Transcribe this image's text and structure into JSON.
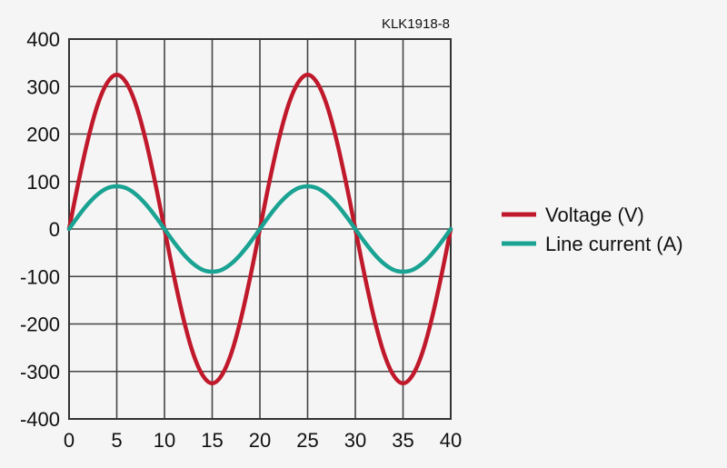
{
  "chart_data": {
    "type": "line",
    "annotation": "KLK1918-8",
    "x_ticks": [
      "0",
      "5",
      "10",
      "15",
      "20",
      "25",
      "30",
      "35",
      "40"
    ],
    "y_ticks": [
      "400",
      "300",
      "200",
      "100",
      "0",
      "-100",
      "-200",
      "-300",
      "-400"
    ],
    "xlim": [
      0,
      40
    ],
    "ylim": [
      -400,
      400
    ],
    "grid": true,
    "legend_position": "right",
    "series": [
      {
        "name": "Voltage (V)",
        "color": "#c0192b",
        "x": [
          0,
          1,
          2,
          3,
          4,
          5,
          6,
          7,
          8,
          9,
          10,
          11,
          12,
          13,
          14,
          15,
          16,
          17,
          18,
          19,
          20,
          21,
          22,
          23,
          24,
          25,
          26,
          27,
          28,
          29,
          30,
          31,
          32,
          33,
          34,
          35,
          36,
          37,
          38,
          39,
          40
        ],
        "y": [
          0,
          100,
          190,
          262,
          308,
          325,
          308,
          262,
          190,
          100,
          0,
          -100,
          -190,
          -262,
          -308,
          -325,
          -308,
          -262,
          -190,
          -100,
          0,
          100,
          190,
          262,
          308,
          325,
          308,
          262,
          190,
          100,
          0,
          -100,
          -190,
          -262,
          -308,
          -325,
          -308,
          -262,
          -190,
          -100,
          0
        ]
      },
      {
        "name": "Line current (A)",
        "color": "#1aa393",
        "x": [
          0,
          1,
          2,
          3,
          4,
          5,
          6,
          7,
          8,
          9,
          10,
          11,
          12,
          13,
          14,
          15,
          16,
          17,
          18,
          19,
          20,
          21,
          22,
          23,
          24,
          25,
          26,
          27,
          28,
          29,
          30,
          31,
          32,
          33,
          34,
          35,
          36,
          37,
          38,
          39,
          40
        ],
        "y": [
          0,
          28,
          53,
          73,
          86,
          90,
          86,
          73,
          53,
          28,
          0,
          -28,
          -53,
          -73,
          -86,
          -90,
          -86,
          -73,
          -53,
          -28,
          0,
          28,
          53,
          73,
          86,
          90,
          86,
          73,
          53,
          28,
          0,
          -28,
          -53,
          -73,
          -86,
          -90,
          -86,
          -73,
          -53,
          -28,
          0
        ]
      }
    ]
  }
}
